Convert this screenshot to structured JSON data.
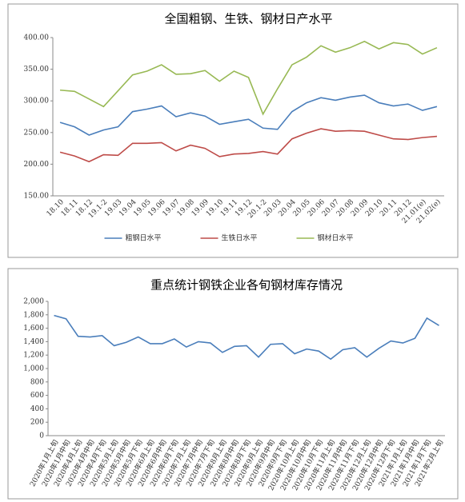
{
  "chart_data": [
    {
      "type": "line",
      "title": "全国粗钢、生铁、钢材日产水平",
      "categories": [
        "18.10",
        "18.11",
        "18.12",
        "19.1-2",
        "19.03",
        "19.04",
        "19.05",
        "19.06",
        "19.07",
        "19.08",
        "19.09",
        "19.10",
        "19.11",
        "19.12",
        "20.1-2",
        "20.03",
        "20.04",
        "20.05",
        "20.06",
        "20.07",
        "20.08",
        "20.09",
        "20.10",
        "20.11",
        "20.12",
        "21.01(e)",
        "21.02(e)"
      ],
      "series": [
        {
          "name": "粗钢日水平",
          "color": "#4a7ebb",
          "values": [
            266,
            259,
            246,
            254,
            259,
            283,
            287,
            292,
            275,
            281,
            276,
            263,
            267,
            271,
            257,
            255,
            283,
            297,
            305,
            301,
            306,
            309,
            297,
            292,
            295,
            285,
            291
          ]
        },
        {
          "name": "生铁日水平",
          "color": "#be4b48",
          "values": [
            219,
            213,
            204,
            215,
            214,
            233,
            233,
            234,
            221,
            230,
            225,
            212,
            216,
            217,
            220,
            216,
            240,
            249,
            256,
            252,
            253,
            252,
            246,
            240,
            239,
            242,
            244
          ]
        },
        {
          "name": "钢材日水平",
          "color": "#98b954",
          "values": [
            317,
            315,
            303,
            291,
            316,
            341,
            347,
            357,
            342,
            343,
            348,
            331,
            347,
            337,
            279,
            319,
            357,
            369,
            387,
            377,
            384,
            394,
            382,
            392,
            389,
            374,
            384
          ]
        }
      ],
      "ylim": [
        150,
        400
      ],
      "yticks": [
        {
          "value": 150,
          "label": "150.00"
        },
        {
          "value": 200,
          "label": "200.00"
        },
        {
          "value": 250,
          "label": "250.00"
        },
        {
          "value": 300,
          "label": "300.00"
        },
        {
          "value": 350,
          "label": "350.00"
        },
        {
          "value": 400,
          "label": "400.00"
        }
      ],
      "grid": false,
      "legend": "bottom"
    },
    {
      "type": "line",
      "title": "重点统计钢铁企业各旬钢材库存情况",
      "categories": [
        "2020年1月上旬",
        "2020年1月中旬",
        "2020年4月上旬",
        "2020年4月中旬",
        "2020年4月下旬",
        "2020年5月上旬",
        "2020年5月中旬",
        "2020年5月下旬",
        "2020年6月上旬",
        "2020年6月中旬",
        "2020年6月下旬",
        "2020年7月上旬",
        "2020年7月中旬",
        "2020年7月下旬",
        "2020年8月上旬",
        "2020年8月中旬",
        "2020年8月下旬",
        "2020年9月上旬",
        "2020年9月中旬",
        "2020年9月下旬",
        "2020年10月上旬",
        "2020年10月中旬",
        "2020年10月下旬",
        "2020年11月上旬",
        "2020年11月中旬",
        "2020年11月下旬",
        "2020年12月上旬",
        "2020年12月中旬",
        "2020年12月下旬",
        "2021年1月上旬",
        "2021年1月中旬",
        "2021年1月下旬",
        "2021年2月上旬"
      ],
      "values": [
        1790,
        1740,
        1480,
        1470,
        1490,
        1340,
        1390,
        1470,
        1370,
        1370,
        1440,
        1320,
        1400,
        1380,
        1240,
        1330,
        1340,
        1170,
        1360,
        1370,
        1220,
        1290,
        1260,
        1140,
        1280,
        1310,
        1170,
        1300,
        1410,
        1380,
        1450,
        1750,
        1640
      ],
      "color": "#4a7ebb",
      "ylim": [
        0,
        2000
      ],
      "yticks": [
        0,
        200,
        400,
        600,
        800,
        {
          "value": 1000,
          "label": "1,000"
        },
        {
          "value": 1200,
          "label": "1,200"
        },
        {
          "value": 1400,
          "label": "1,400"
        },
        {
          "value": 1600,
          "label": "1,600"
        },
        {
          "value": 1800,
          "label": "1,800"
        },
        {
          "value": 2000,
          "label": "2,000"
        }
      ],
      "grid": false
    }
  ]
}
